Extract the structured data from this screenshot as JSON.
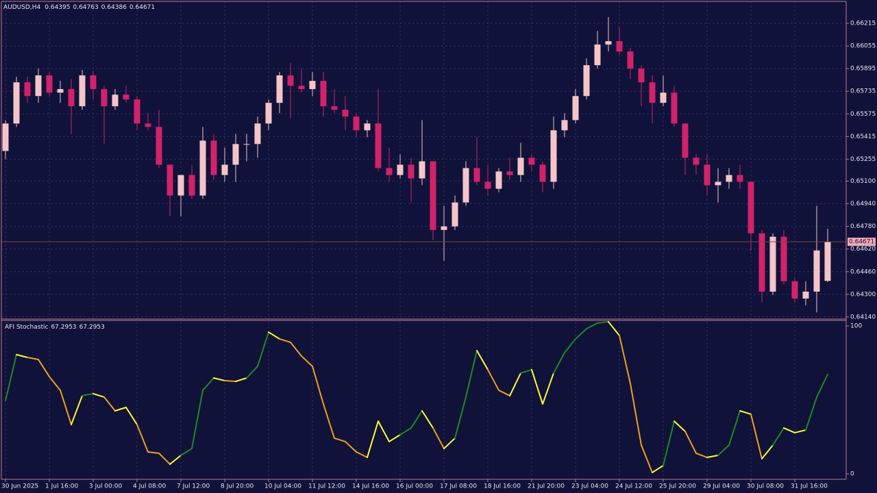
{
  "chart_data": [
    {
      "type": "candlestick",
      "title": "AUDUSD,H4",
      "last_ohlc": [
        0.64395,
        0.64763,
        0.64386,
        0.64671
      ],
      "current_price": 0.64671,
      "colors": {
        "bull": "#f4c4c8",
        "bear": "#d2226a",
        "price_line": "#7a4a32",
        "price_label": "#f4a8b8"
      },
      "grid": true,
      "categories": [
        "30 Jun 2025",
        null,
        null,
        null,
        "1 Jul 16:00",
        null,
        null,
        null,
        "3 Jul 00:00",
        null,
        null,
        null,
        "4 Jul 08:00",
        null,
        null,
        null,
        "7 Jul 12:00",
        null,
        null,
        null,
        "8 Jul 20:00",
        null,
        null,
        null,
        "10 Jul 04:00",
        null,
        null,
        null,
        "11 Jul 12:00",
        null,
        null,
        null,
        "14 Jul 16:00",
        null,
        null,
        null,
        "16 Jul 00:00",
        null,
        null,
        null,
        "17 Jul 08:00",
        null,
        null,
        null,
        "18 Jul 16:00",
        null,
        null,
        null,
        "21 Jul 20:00",
        null,
        null,
        null,
        "23 Jul 04:00",
        null,
        null,
        null,
        "24 Jul 12:00",
        null,
        null,
        null,
        "25 Jul 20:00",
        null,
        null,
        null,
        "29 Jul 04:00",
        null,
        null,
        null,
        "30 Jul 08:00",
        null,
        null,
        null,
        "31 Jul 16:00",
        null,
        null,
        null
      ],
      "open": [
        0.65313,
        0.65507,
        0.65798,
        0.65701,
        0.65847,
        0.65725,
        0.6575,
        0.65629,
        0.65847,
        0.6575,
        0.65629,
        0.65711,
        0.65677,
        0.65507,
        0.65483,
        0.65216,
        0.64998,
        0.65143,
        0.64998,
        0.65386,
        0.65143,
        0.65216,
        0.65362,
        0.65362,
        0.65507,
        0.65653,
        0.65847,
        0.65774,
        0.6575,
        0.65808,
        0.65629,
        0.65604,
        0.65556,
        0.65459,
        0.65507,
        0.65192,
        0.65143,
        0.65216,
        0.65119,
        0.6524,
        0.64755,
        0.6478,
        0.64949,
        0.65192,
        0.65095,
        0.65046,
        0.65168,
        0.65143,
        0.65265,
        0.65216,
        0.65095,
        0.65459,
        0.65531,
        0.65701,
        0.65919,
        0.66065,
        0.66089,
        0.66016,
        0.65895,
        0.65798,
        0.65653,
        0.65725,
        0.65507,
        0.65265,
        0.65216,
        0.65071,
        0.65095,
        0.65143,
        0.65095,
        0.64731,
        0.64319,
        0.64707,
        0.64392,
        0.6427,
        0.64319,
        0.64395
      ],
      "high": [
        0.65531,
        0.65837,
        0.65837,
        0.65895,
        0.65871,
        0.65808,
        0.65822,
        0.65885,
        0.6588,
        0.65774,
        0.6575,
        0.65774,
        0.65701,
        0.6558,
        0.65604,
        0.65216,
        0.65143,
        0.65216,
        0.65483,
        0.65434,
        0.65337,
        0.65434,
        0.65434,
        0.65556,
        0.65677,
        0.65871,
        0.65934,
        0.65895,
        0.65871,
        0.65871,
        0.6575,
        0.65701,
        0.6558,
        0.65531,
        0.6575,
        0.65337,
        0.65289,
        0.65265,
        0.65531,
        0.6524,
        0.64925,
        0.64998,
        0.6524,
        0.6541,
        0.65216,
        0.65192,
        0.65265,
        0.65371,
        0.65289,
        0.6524,
        0.65556,
        0.6558,
        0.6575,
        0.65968,
        0.66162,
        0.66259,
        0.66186,
        0.66041,
        0.65919,
        0.65847,
        0.65847,
        0.65774,
        0.65507,
        0.65289,
        0.65289,
        0.65192,
        0.65192,
        0.65216,
        0.65095,
        0.64755,
        0.64731,
        0.64755,
        0.64416,
        0.64392,
        0.64925,
        0.64763
      ],
      "low": [
        0.65255,
        0.65483,
        0.65653,
        0.65653,
        0.65701,
        0.65653,
        0.65434,
        0.65604,
        0.65677,
        0.65362,
        0.65604,
        0.65653,
        0.65459,
        0.65459,
        0.65192,
        0.64852,
        0.64852,
        0.64974,
        0.64974,
        0.65109,
        0.65095,
        0.65095,
        0.6524,
        0.65265,
        0.65459,
        0.6558,
        0.65546,
        0.65725,
        0.65701,
        0.65556,
        0.6558,
        0.65459,
        0.6541,
        0.6541,
        0.65168,
        0.65095,
        0.65119,
        0.64949,
        0.65071,
        0.64683,
        0.64537,
        0.64755,
        0.64925,
        0.65071,
        0.64998,
        0.65022,
        0.65109,
        0.65095,
        0.65168,
        0.65022,
        0.65046,
        0.6541,
        0.65507,
        0.65677,
        0.65895,
        0.66016,
        0.65992,
        0.65822,
        0.65629,
        0.65507,
        0.65629,
        0.65483,
        0.65143,
        0.65143,
        0.64998,
        0.64949,
        0.65046,
        0.65046,
        0.6461,
        0.64246,
        0.64295,
        0.64367,
        0.64246,
        0.64222,
        0.64172,
        0.64386
      ],
      "close": [
        0.65507,
        0.65798,
        0.65701,
        0.65847,
        0.65725,
        0.6575,
        0.65629,
        0.65847,
        0.6575,
        0.65629,
        0.65711,
        0.65677,
        0.65507,
        0.65483,
        0.65216,
        0.64998,
        0.65143,
        0.64998,
        0.65386,
        0.65143,
        0.65216,
        0.65362,
        0.65362,
        0.65507,
        0.65653,
        0.65847,
        0.65774,
        0.6575,
        0.65808,
        0.65629,
        0.65604,
        0.65556,
        0.65459,
        0.65507,
        0.65192,
        0.65143,
        0.65216,
        0.65119,
        0.6524,
        0.64755,
        0.6478,
        0.64949,
        0.65192,
        0.65095,
        0.65046,
        0.65168,
        0.65143,
        0.65265,
        0.65216,
        0.65095,
        0.65459,
        0.65531,
        0.65701,
        0.65919,
        0.66065,
        0.66089,
        0.66016,
        0.65895,
        0.65798,
        0.65653,
        0.65725,
        0.65507,
        0.65265,
        0.65216,
        0.65071,
        0.65095,
        0.65143,
        0.65095,
        0.64731,
        0.64319,
        0.64707,
        0.64392,
        0.6427,
        0.64319,
        0.6461,
        0.64671
      ],
      "ylim": [
        0.64125,
        0.6637
      ],
      "yticks": [
        0.66215,
        0.66055,
        0.65895,
        0.65735,
        0.65575,
        0.65415,
        0.65255,
        {
          "value": 0.651,
          "label": "0.65100"
        },
        {
          "value": 0.6494,
          "label": "0.64940"
        },
        {
          "value": 0.6478,
          "label": "0.64780"
        },
        {
          "value": 0.6462,
          "label": "0.64620"
        },
        {
          "value": 0.6446,
          "label": "0.64460"
        },
        {
          "value": 0.643,
          "label": "0.64300"
        },
        {
          "value": 0.6414,
          "label": "0.64140"
        }
      ]
    },
    {
      "type": "line",
      "title": "AFI Stochastic",
      "legend_values": [
        67.2953,
        67.2953
      ],
      "colors": {
        "up": "#1f8a1f",
        "down": "#f0a020",
        "turn": "#ffff33"
      },
      "series": [
        {
          "values": [
            49.5,
            80.6,
            78.7,
            77.3,
            65.7,
            56.5,
            33.3,
            52.8,
            54.2,
            51.9,
            42.6,
            44.9,
            33.3,
            14.8,
            13.9,
            6.5,
            12.5,
            17.1,
            56.5,
            64.8,
            63.0,
            62.5,
            64.8,
            72.7,
            95.8,
            91.2,
            88.9,
            79.6,
            72.7,
            47.2,
            24.1,
            21.8,
            14.8,
            11.1,
            35.6,
            21.8,
            26.4,
            31.0,
            42.6,
            31.0,
            17.1,
            24.1,
            51.9,
            83.3,
            70.4,
            56.5,
            52.8,
            68.1,
            70.4,
            47.2,
            68.1,
            81.9,
            91.2,
            98.1,
            101.9,
            102.8,
            93.5,
            61.1,
            19.4,
            0.9,
            5.6,
            35.6,
            28.7,
            13.9,
            11.1,
            12.5,
            19.4,
            42.6,
            40.3,
            10.2,
            19.4,
            31.0,
            27.8,
            29.6,
            51.9,
            67.2953
          ]
        }
      ],
      "ylim": [
        -3.7,
        103.7
      ],
      "yticks": [
        100,
        0
      ],
      "grid": true
    }
  ]
}
